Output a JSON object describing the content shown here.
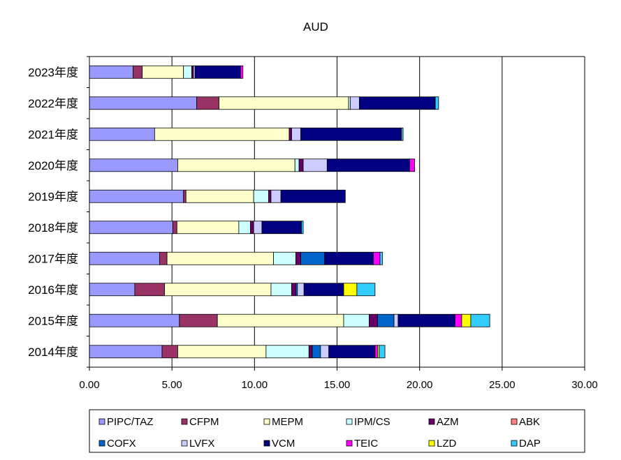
{
  "chart_data": {
    "type": "bar",
    "orientation": "horizontal",
    "stacked": true,
    "title": "AUD",
    "xlim": [
      0,
      30
    ],
    "xticks": [
      "0.00",
      "5.00",
      "10.00",
      "15.00",
      "20.00",
      "25.00",
      "30.00"
    ],
    "grid": "vertical lines at major x ticks",
    "legend_position": "bottom",
    "categories": [
      "2023年度",
      "2022年度",
      "2021年度",
      "2020年度",
      "2019年度",
      "2018年度",
      "2017年度",
      "2016年度",
      "2015年度",
      "2014年度"
    ],
    "series": [
      {
        "name": "PIPC/TAZ",
        "color": "#9999ff",
        "values": [
          2.65,
          6.5,
          3.95,
          5.35,
          5.7,
          5.05,
          4.25,
          2.75,
          5.45,
          4.4
        ]
      },
      {
        "name": "CFPM",
        "color": "#993366",
        "values": [
          0.55,
          1.35,
          0,
          0,
          0.15,
          0.25,
          0.45,
          1.8,
          2.3,
          0.95
        ]
      },
      {
        "name": "MEPM",
        "color": "#ffffcc",
        "values": [
          2.5,
          7.85,
          8.15,
          7.1,
          4.1,
          3.75,
          6.45,
          6.45,
          7.65,
          5.35
        ]
      },
      {
        "name": "IPM/CS",
        "color": "#ccffff",
        "values": [
          0.5,
          0.1,
          0,
          0.25,
          0.9,
          0.7,
          1.35,
          1.25,
          1.55,
          2.6
        ]
      },
      {
        "name": "AZM",
        "color": "#660066",
        "values": [
          0.1,
          0,
          0.15,
          0.25,
          0.15,
          0.2,
          0.3,
          0.25,
          0.5,
          0.2
        ]
      },
      {
        "name": "ABK",
        "color": "#ff8080",
        "values": [
          0,
          0,
          0,
          0,
          0,
          0,
          0,
          0,
          0,
          0
        ]
      },
      {
        "name": "COFX",
        "color": "#0066cc",
        "values": [
          0,
          0,
          0,
          0,
          0,
          0,
          1.45,
          0.1,
          1.0,
          0.5
        ]
      },
      {
        "name": "LVFX",
        "color": "#ccccff",
        "values": [
          0.1,
          0.55,
          0.55,
          1.45,
          0.6,
          0.5,
          0,
          0.4,
          0.25,
          0.5
        ]
      },
      {
        "name": "VCM",
        "color": "#000080",
        "values": [
          2.75,
          4.6,
          6.1,
          5.0,
          3.9,
          2.4,
          2.95,
          2.4,
          3.45,
          2.8
        ]
      },
      {
        "name": "TEIC",
        "color": "#ff00ff",
        "values": [
          0.15,
          0,
          0,
          0.3,
          0,
          0,
          0.4,
          0,
          0.4,
          0.15
        ]
      },
      {
        "name": "LZD",
        "color": "#ffff00",
        "values": [
          0,
          0,
          0,
          0,
          0,
          0,
          0,
          0.8,
          0.55,
          0.1
        ]
      },
      {
        "name": "DAP",
        "color": "#33ccff",
        "values": [
          0,
          0.2,
          0.1,
          0,
          0,
          0.1,
          0.15,
          1.1,
          1.15,
          0.35
        ]
      }
    ]
  }
}
